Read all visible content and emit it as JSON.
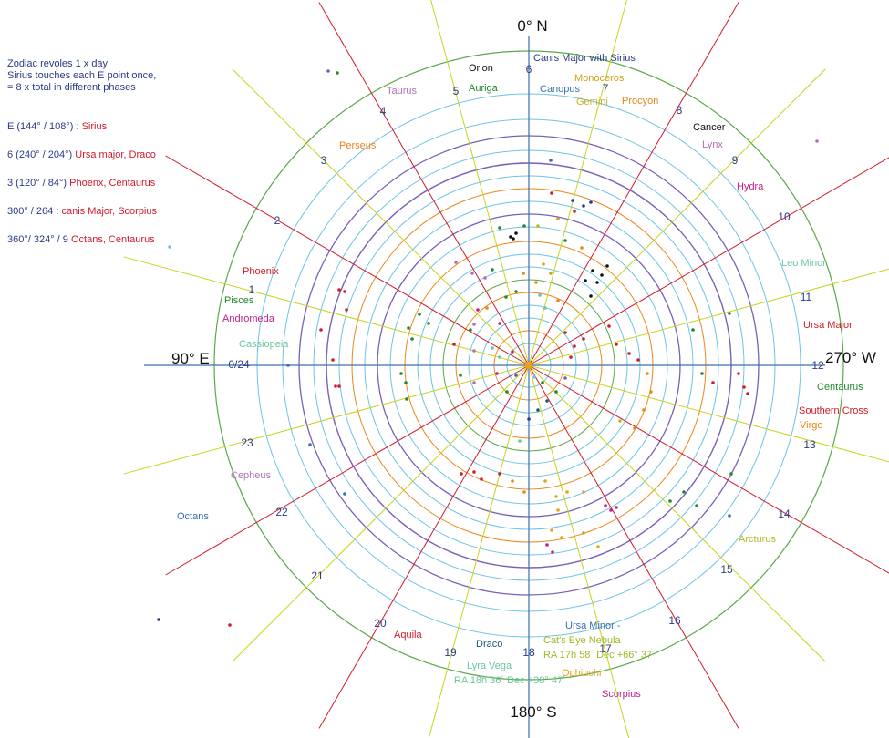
{
  "notes": {
    "intro": [
      "Zodiac revoles 1 x day",
      "Sirius touches each E point once,",
      "= 8 x total in different phases"
    ],
    "entries": [
      {
        "key": "E  (144° / 108°) :",
        "value": "Sirius"
      },
      {
        "key": "6  (240° / 204°)",
        "value": "Ursa major, Draco"
      },
      {
        "key": "3 (120° / 84°)",
        "value": "Phoenx, Centaurus"
      },
      {
        "key": "300° / 264 :",
        "value": "canis Major, Scorpius"
      },
      {
        "key": "360°/ 324° / 9",
        "value": "Octans, Centaurus"
      }
    ]
  },
  "cardinals": {
    "north": "0°  N",
    "south": "180°  S",
    "east": "90°  E",
    "west": "270°  W"
  },
  "hours": [
    "0/24",
    "1",
    "2",
    "3",
    "4",
    "5",
    "6",
    "7",
    "8",
    "9",
    "10",
    "11",
    "12",
    "13",
    "14",
    "15",
    "16",
    "17",
    "18",
    "19",
    "20",
    "21",
    "22",
    "23"
  ],
  "constellations": [
    {
      "name": "Orion",
      "color": "#111111"
    },
    {
      "name": "Auriga",
      "color": "#1f8a2c"
    },
    {
      "name": "Taurus",
      "color": "#b070b8"
    },
    {
      "name": "Perseus",
      "color": "#e8871c"
    },
    {
      "name": "Canis Major  with Sirius",
      "color": "#2b3a87"
    },
    {
      "name": "Monoceros",
      "color": "#d4a017"
    },
    {
      "name": "Canopus",
      "color": "#3a6fb0"
    },
    {
      "name": "Gemini",
      "color": "#c9b21c"
    },
    {
      "name": "Procyon",
      "color": "#e8871c"
    },
    {
      "name": "Cancer",
      "color": "#111111"
    },
    {
      "name": "Lynx",
      "color": "#b070b8"
    },
    {
      "name": "Hydra",
      "color": "#c0208a"
    },
    {
      "name": "Leo Minor",
      "color": "#6cc6a0"
    },
    {
      "name": "Ursa Major",
      "color": "#d11a2a"
    },
    {
      "name": "Centaurus",
      "color": "#1f8a2c"
    },
    {
      "name": "Southern Cross",
      "color": "#d11a2a"
    },
    {
      "name": "Virgo",
      "color": "#e8871c"
    },
    {
      "name": "Arcturus",
      "color": "#b8b820"
    },
    {
      "name": "Ursa Minor -",
      "color": "#3a6fb0"
    },
    {
      "name": "Cat's Eye Nebula",
      "color": "#a0b820"
    },
    {
      "name": "RA 17h 58´ Dec +66° 37´",
      "color": "#a0b820"
    },
    {
      "name": "Ophiuchi",
      "color": "#e8a21c"
    },
    {
      "name": "Scorpius",
      "color": "#c0208a"
    },
    {
      "name": "Draco",
      "color": "#1e5a78"
    },
    {
      "name": "Lyra  Vega",
      "color": "#6cc6a0"
    },
    {
      "name": "RA 18h 36´ Dec +38° 47´",
      "color": "#6cc6a0"
    },
    {
      "name": "Aquila",
      "color": "#d11a2a"
    },
    {
      "name": "Octans",
      "color": "#3a6fb0"
    },
    {
      "name": "Cepheus",
      "color": "#b070b8"
    },
    {
      "name": "Cassiopeia",
      "color": "#6cc6a0"
    },
    {
      "name": "Andromeda",
      "color": "#c0208a"
    },
    {
      "name": "Pisces",
      "color": "#1f8a2c"
    },
    {
      "name": "Phoenix",
      "color": "#d11a2a"
    }
  ],
  "colors": {
    "axis": "#3a6fb0",
    "ring_colors": [
      "#6ec3e6",
      "#e8871c",
      "#7b5fb8",
      "#5aa84a"
    ],
    "radial_colors": [
      "#d11a2a",
      "#c9d21c"
    ],
    "center": "#e8a21c"
  }
}
